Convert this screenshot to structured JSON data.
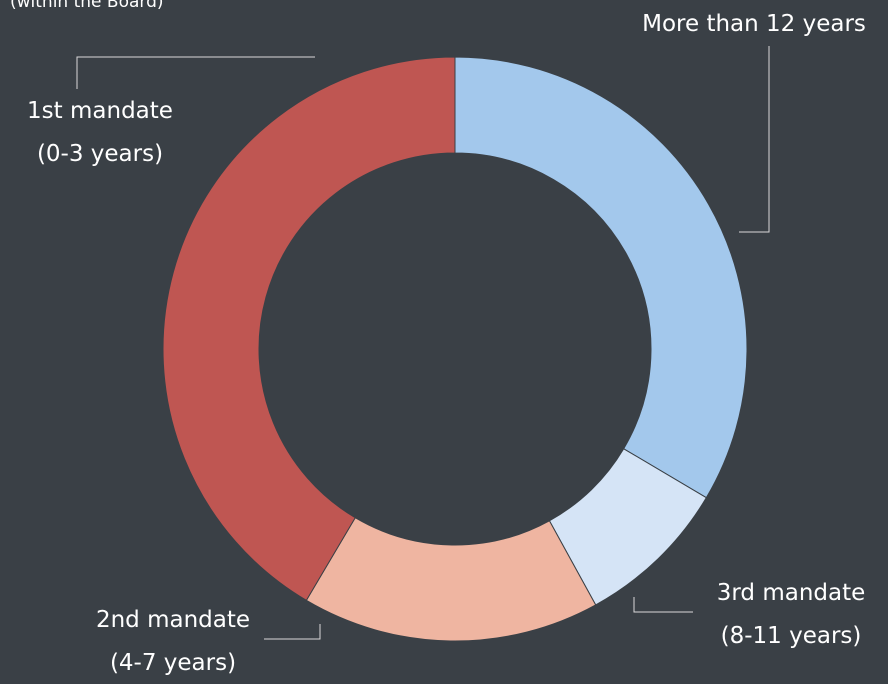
{
  "colors": {
    "background": "#3a4046",
    "leader_line": "#d9d9d9",
    "text": "#ffffff"
  },
  "chart_data": {
    "type": "pie",
    "variant": "donut",
    "caption_partial": "(within the Board)",
    "slices": [
      {
        "key": "more_than_12",
        "label_lines": [
          "More than 12 years"
        ],
        "value": 33.5,
        "color": "#a3c8ec"
      },
      {
        "key": "third",
        "label_lines": [
          "3rd mandate",
          "(8-11 years)"
        ],
        "value": 8.5,
        "color": "#d5e4f6"
      },
      {
        "key": "second",
        "label_lines": [
          "2nd mandate",
          "(4-7 years)"
        ],
        "value": 16.5,
        "color": "#efb5a1"
      },
      {
        "key": "first",
        "label_lines": [
          "1st mandate",
          "(0-3 years)"
        ],
        "value": 41.5,
        "color": "#bf5652"
      }
    ]
  }
}
